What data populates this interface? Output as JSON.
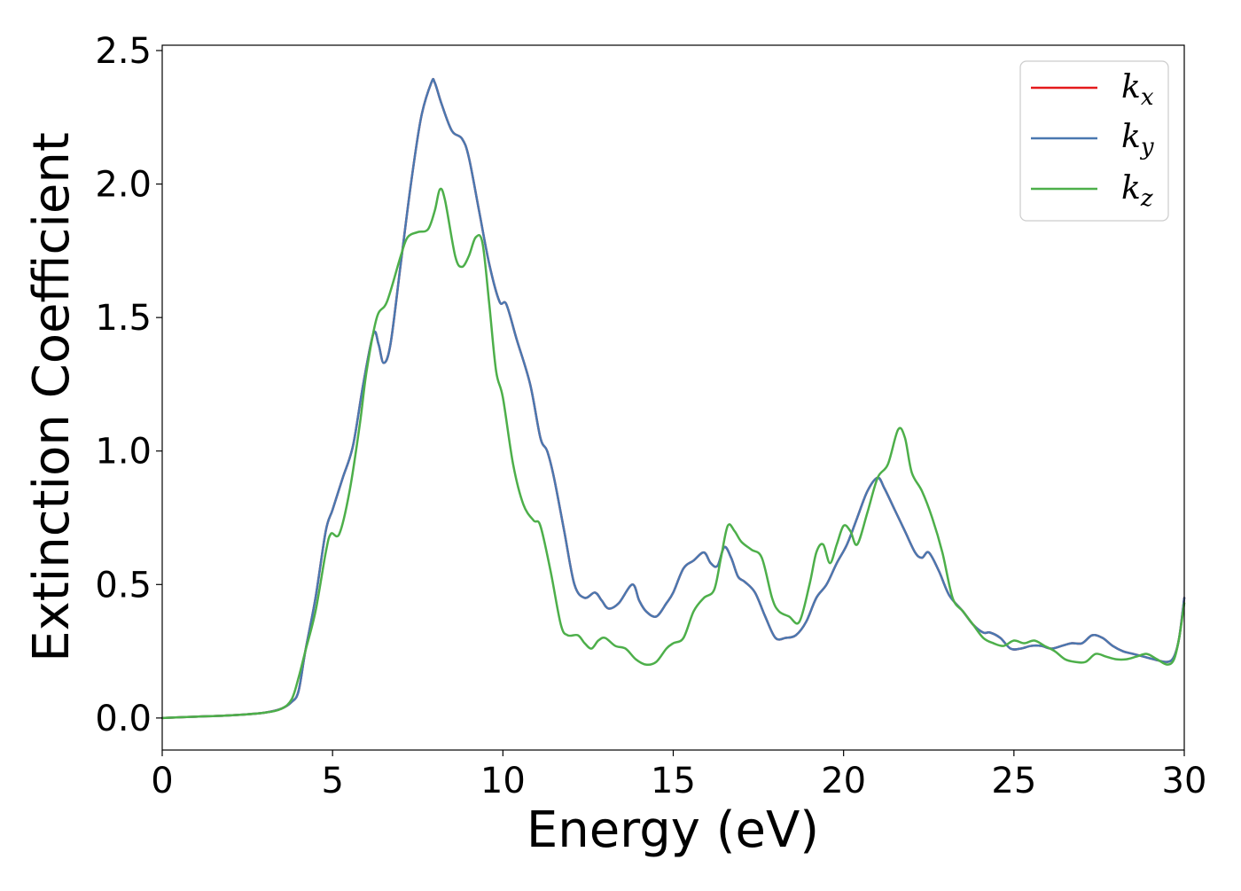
{
  "chart_data": {
    "type": "line",
    "xlabel": "Energy (eV)",
    "ylabel": "Extinction Coefficient",
    "xlim": [
      0,
      30
    ],
    "ylim": [
      -0.12,
      2.52
    ],
    "xticks": [
      0,
      5,
      10,
      15,
      20,
      25,
      30
    ],
    "yticks": [
      0.0,
      0.5,
      1.0,
      1.5,
      2.0,
      2.5
    ],
    "xtick_labels": [
      "0",
      "5",
      "10",
      "15",
      "20",
      "25",
      "30"
    ],
    "ytick_labels": [
      "0.0",
      "0.5",
      "1.0",
      "1.5",
      "2.0",
      "2.5"
    ],
    "grid": false,
    "legend_position": "top-right",
    "series": [
      {
        "name": "k_x",
        "label_main": "k",
        "label_sub": "x",
        "color": "#e41a1c",
        "x": [
          0,
          1,
          2,
          3,
          3.5,
          3.8,
          4,
          4.2,
          4.5,
          4.8,
          5,
          5.3,
          5.6,
          5.9,
          6.2,
          6.35,
          6.5,
          6.7,
          7.0,
          7.3,
          7.6,
          7.9,
          8.0,
          8.2,
          8.5,
          8.8,
          9.0,
          9.3,
          9.6,
          9.9,
          10.1,
          10.4,
          10.8,
          11.1,
          11.3,
          11.5,
          11.8,
          12.1,
          12.4,
          12.7,
          12.9,
          13.1,
          13.4,
          13.8,
          14.0,
          14.2,
          14.5,
          14.8,
          15.0,
          15.3,
          15.6,
          15.9,
          16.1,
          16.3,
          16.5,
          16.7,
          16.9,
          17.1,
          17.4,
          17.7,
          18.0,
          18.3,
          18.6,
          18.9,
          19.2,
          19.5,
          19.8,
          20.1,
          20.4,
          20.7,
          21.0,
          21.2,
          21.5,
          21.8,
          22.1,
          22.3,
          22.5,
          22.8,
          23.1,
          23.5,
          23.8,
          24.1,
          24.3,
          24.6,
          24.9,
          25.2,
          25.5,
          25.8,
          26.1,
          26.4,
          26.7,
          27.0,
          27.3,
          27.6,
          27.9,
          28.2,
          28.5,
          28.8,
          29.1,
          29.5,
          29.7,
          29.85,
          30
        ],
        "y": [
          0,
          0.005,
          0.01,
          0.02,
          0.035,
          0.06,
          0.1,
          0.25,
          0.45,
          0.7,
          0.78,
          0.9,
          1.02,
          1.25,
          1.44,
          1.4,
          1.33,
          1.4,
          1.7,
          2.0,
          2.25,
          2.38,
          2.38,
          2.3,
          2.2,
          2.17,
          2.1,
          1.9,
          1.7,
          1.56,
          1.55,
          1.42,
          1.25,
          1.05,
          1.0,
          0.9,
          0.7,
          0.5,
          0.45,
          0.47,
          0.44,
          0.41,
          0.43,
          0.5,
          0.44,
          0.4,
          0.38,
          0.43,
          0.47,
          0.56,
          0.59,
          0.62,
          0.58,
          0.57,
          0.64,
          0.6,
          0.53,
          0.51,
          0.47,
          0.38,
          0.3,
          0.3,
          0.31,
          0.36,
          0.45,
          0.5,
          0.58,
          0.65,
          0.75,
          0.85,
          0.9,
          0.86,
          0.78,
          0.7,
          0.62,
          0.6,
          0.62,
          0.55,
          0.46,
          0.4,
          0.35,
          0.32,
          0.32,
          0.3,
          0.26,
          0.26,
          0.27,
          0.27,
          0.26,
          0.27,
          0.28,
          0.28,
          0.31,
          0.3,
          0.27,
          0.25,
          0.24,
          0.23,
          0.22,
          0.21,
          0.23,
          0.3,
          0.45
        ]
      },
      {
        "name": "k_y",
        "label_main": "k",
        "label_sub": "y",
        "color": "#4a78b0",
        "x": [
          0,
          1,
          2,
          3,
          3.5,
          3.8,
          4,
          4.2,
          4.5,
          4.8,
          5,
          5.3,
          5.6,
          5.9,
          6.2,
          6.35,
          6.5,
          6.7,
          7.0,
          7.3,
          7.6,
          7.9,
          8.0,
          8.2,
          8.5,
          8.8,
          9.0,
          9.3,
          9.6,
          9.9,
          10.1,
          10.4,
          10.8,
          11.1,
          11.3,
          11.5,
          11.8,
          12.1,
          12.4,
          12.7,
          12.9,
          13.1,
          13.4,
          13.8,
          14.0,
          14.2,
          14.5,
          14.8,
          15.0,
          15.3,
          15.6,
          15.9,
          16.1,
          16.3,
          16.5,
          16.7,
          16.9,
          17.1,
          17.4,
          17.7,
          18.0,
          18.3,
          18.6,
          18.9,
          19.2,
          19.5,
          19.8,
          20.1,
          20.4,
          20.7,
          21.0,
          21.2,
          21.5,
          21.8,
          22.1,
          22.3,
          22.5,
          22.8,
          23.1,
          23.5,
          23.8,
          24.1,
          24.3,
          24.6,
          24.9,
          25.2,
          25.5,
          25.8,
          26.1,
          26.4,
          26.7,
          27.0,
          27.3,
          27.6,
          27.9,
          28.2,
          28.5,
          28.8,
          29.1,
          29.5,
          29.7,
          29.85,
          30
        ],
        "y": [
          0,
          0.005,
          0.01,
          0.02,
          0.035,
          0.06,
          0.1,
          0.25,
          0.45,
          0.7,
          0.78,
          0.9,
          1.02,
          1.25,
          1.44,
          1.4,
          1.33,
          1.4,
          1.7,
          2.0,
          2.25,
          2.38,
          2.38,
          2.3,
          2.2,
          2.17,
          2.1,
          1.9,
          1.7,
          1.56,
          1.55,
          1.42,
          1.25,
          1.05,
          1.0,
          0.9,
          0.7,
          0.5,
          0.45,
          0.47,
          0.44,
          0.41,
          0.43,
          0.5,
          0.44,
          0.4,
          0.38,
          0.43,
          0.47,
          0.56,
          0.59,
          0.62,
          0.58,
          0.57,
          0.64,
          0.6,
          0.53,
          0.51,
          0.47,
          0.38,
          0.3,
          0.3,
          0.31,
          0.36,
          0.45,
          0.5,
          0.58,
          0.65,
          0.75,
          0.85,
          0.9,
          0.86,
          0.78,
          0.7,
          0.62,
          0.6,
          0.62,
          0.55,
          0.46,
          0.4,
          0.35,
          0.32,
          0.32,
          0.3,
          0.26,
          0.26,
          0.27,
          0.27,
          0.26,
          0.27,
          0.28,
          0.28,
          0.31,
          0.3,
          0.27,
          0.25,
          0.24,
          0.23,
          0.22,
          0.21,
          0.23,
          0.3,
          0.45
        ]
      },
      {
        "name": "k_z",
        "label_main": "k",
        "label_sub": "z",
        "color": "#4daf4a",
        "x": [
          0,
          1,
          2,
          3,
          3.5,
          3.8,
          4,
          4.2,
          4.5,
          4.8,
          4.95,
          5.2,
          5.5,
          5.8,
          6.0,
          6.3,
          6.6,
          7.0,
          7.2,
          7.5,
          7.8,
          8.0,
          8.15,
          8.3,
          8.6,
          8.8,
          9.0,
          9.2,
          9.4,
          9.6,
          9.8,
          10.0,
          10.3,
          10.6,
          10.9,
          11.1,
          11.4,
          11.7,
          11.9,
          12.2,
          12.4,
          12.6,
          12.8,
          13.0,
          13.3,
          13.6,
          13.9,
          14.2,
          14.5,
          14.8,
          15.0,
          15.3,
          15.6,
          15.9,
          16.2,
          16.4,
          16.6,
          16.8,
          17.0,
          17.3,
          17.6,
          17.9,
          18.1,
          18.4,
          18.7,
          19.0,
          19.2,
          19.4,
          19.6,
          19.8,
          20.0,
          20.2,
          20.4,
          20.7,
          21.0,
          21.3,
          21.6,
          21.8,
          22.0,
          22.3,
          22.6,
          22.9,
          23.2,
          23.5,
          23.8,
          24.1,
          24.4,
          24.7,
          25.0,
          25.3,
          25.6,
          25.9,
          26.2,
          26.5,
          26.8,
          27.1,
          27.4,
          27.7,
          28.0,
          28.3,
          28.6,
          28.9,
          29.2,
          29.5,
          29.7,
          29.85,
          30
        ],
        "y": [
          0,
          0.005,
          0.01,
          0.02,
          0.035,
          0.07,
          0.15,
          0.25,
          0.4,
          0.62,
          0.69,
          0.69,
          0.85,
          1.1,
          1.3,
          1.5,
          1.56,
          1.73,
          1.8,
          1.82,
          1.83,
          1.9,
          1.98,
          1.94,
          1.73,
          1.69,
          1.73,
          1.8,
          1.78,
          1.55,
          1.3,
          1.2,
          0.95,
          0.8,
          0.74,
          0.72,
          0.55,
          0.35,
          0.31,
          0.31,
          0.28,
          0.26,
          0.29,
          0.3,
          0.27,
          0.26,
          0.22,
          0.2,
          0.21,
          0.26,
          0.28,
          0.3,
          0.4,
          0.45,
          0.48,
          0.6,
          0.72,
          0.7,
          0.66,
          0.63,
          0.6,
          0.45,
          0.4,
          0.38,
          0.36,
          0.5,
          0.62,
          0.65,
          0.58,
          0.65,
          0.72,
          0.7,
          0.65,
          0.77,
          0.9,
          0.95,
          1.08,
          1.05,
          0.92,
          0.85,
          0.75,
          0.62,
          0.45,
          0.4,
          0.35,
          0.3,
          0.28,
          0.27,
          0.29,
          0.28,
          0.29,
          0.27,
          0.25,
          0.22,
          0.21,
          0.21,
          0.24,
          0.23,
          0.22,
          0.22,
          0.23,
          0.24,
          0.22,
          0.2,
          0.22,
          0.3,
          0.43
        ]
      }
    ]
  }
}
